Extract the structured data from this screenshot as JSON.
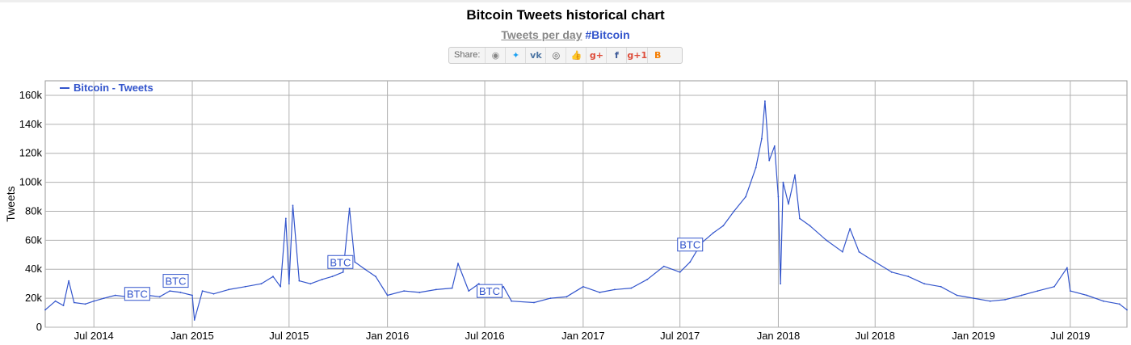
{
  "title": "Bitcoin Tweets historical chart",
  "subtitle_prefix": "Tweets per day",
  "subtitle_tag": "#Bitcoin",
  "share": {
    "label": "Share:",
    "buttons": [
      {
        "name": "reddit",
        "glyph": "◉",
        "color": "#888888"
      },
      {
        "name": "twitter",
        "glyph": "✦",
        "color": "#1da1f2"
      },
      {
        "name": "vk",
        "glyph": "vk",
        "color": "#4c75a3"
      },
      {
        "name": "weibo",
        "glyph": "◎",
        "color": "#555555"
      },
      {
        "name": "like",
        "glyph": "👍",
        "color": "#3b5998"
      },
      {
        "name": "google-plus",
        "glyph": "g+",
        "color": "#dd4b39"
      },
      {
        "name": "facebook",
        "glyph": "f",
        "color": "#3b5998"
      },
      {
        "name": "google-plus-one",
        "glyph": "g+1",
        "color": "#dd4b39"
      },
      {
        "name": "blogger",
        "glyph": "B",
        "color": "#f57d00"
      }
    ]
  },
  "chart_data": {
    "type": "line",
    "ylabel": "Tweets",
    "xlabel": "",
    "ylim": [
      0,
      170000
    ],
    "yticks": [
      0,
      20000,
      40000,
      60000,
      80000,
      100000,
      120000,
      140000,
      160000
    ],
    "ytick_labels": [
      "0",
      "20k",
      "40k",
      "60k",
      "80k",
      "100k",
      "120k",
      "140k",
      "160k"
    ],
    "xlim": [
      "2014-04-01",
      "2019-10-15"
    ],
    "xticks": [
      "2014-07-01",
      "2015-01-01",
      "2015-07-01",
      "2016-01-01",
      "2016-07-01",
      "2017-01-01",
      "2017-07-01",
      "2018-01-01",
      "2018-07-01",
      "2019-01-01",
      "2019-07-01"
    ],
    "xtick_labels": [
      "Jul 2014",
      "Jan 2015",
      "Jul 2015",
      "Jan 2016",
      "Jul 2016",
      "Jan 2017",
      "Jul 2017",
      "Jan 2018",
      "Jul 2018",
      "Jan 2019",
      "Jul 2019"
    ],
    "grid": true,
    "legend_position": "top-left",
    "line_color": "#3355cc",
    "series": [
      {
        "name": "Bitcoin - Tweets",
        "points": [
          [
            "2014-04-01",
            12000
          ],
          [
            "2014-04-20",
            18000
          ],
          [
            "2014-05-05",
            15000
          ],
          [
            "2014-05-15",
            32000
          ],
          [
            "2014-05-25",
            17000
          ],
          [
            "2014-06-15",
            16000
          ],
          [
            "2014-07-01",
            18000
          ],
          [
            "2014-07-20",
            20000
          ],
          [
            "2014-08-10",
            22000
          ],
          [
            "2014-09-01",
            21000
          ],
          [
            "2014-09-20",
            24000
          ],
          [
            "2014-10-10",
            22000
          ],
          [
            "2014-11-01",
            21000
          ],
          [
            "2014-11-20",
            25000
          ],
          [
            "2014-12-10",
            24000
          ],
          [
            "2015-01-01",
            22000
          ],
          [
            "2015-01-05",
            5000
          ],
          [
            "2015-01-20",
            25000
          ],
          [
            "2015-02-10",
            23000
          ],
          [
            "2015-03-10",
            26000
          ],
          [
            "2015-04-10",
            28000
          ],
          [
            "2015-05-10",
            30000
          ],
          [
            "2015-06-01",
            35000
          ],
          [
            "2015-06-15",
            28000
          ],
          [
            "2015-06-25",
            75000
          ],
          [
            "2015-07-01",
            30000
          ],
          [
            "2015-07-08",
            84000
          ],
          [
            "2015-07-20",
            32000
          ],
          [
            "2015-08-10",
            30000
          ],
          [
            "2015-09-01",
            33000
          ],
          [
            "2015-09-20",
            35000
          ],
          [
            "2015-10-10",
            38000
          ],
          [
            "2015-10-22",
            82000
          ],
          [
            "2015-11-01",
            45000
          ],
          [
            "2015-11-20",
            40000
          ],
          [
            "2015-12-10",
            35000
          ],
          [
            "2016-01-01",
            22000
          ],
          [
            "2016-02-01",
            25000
          ],
          [
            "2016-03-01",
            24000
          ],
          [
            "2016-04-01",
            26000
          ],
          [
            "2016-05-01",
            27000
          ],
          [
            "2016-05-12",
            44000
          ],
          [
            "2016-06-01",
            25000
          ],
          [
            "2016-06-20",
            30000
          ],
          [
            "2016-07-01",
            24000
          ],
          [
            "2016-07-20",
            22000
          ],
          [
            "2016-08-05",
            28000
          ],
          [
            "2016-08-20",
            18000
          ],
          [
            "2016-10-01",
            17000
          ],
          [
            "2016-11-01",
            20000
          ],
          [
            "2016-12-01",
            21000
          ],
          [
            "2017-01-01",
            28000
          ],
          [
            "2017-02-01",
            24000
          ],
          [
            "2017-03-01",
            26000
          ],
          [
            "2017-04-01",
            27000
          ],
          [
            "2017-05-01",
            33000
          ],
          [
            "2017-06-01",
            42000
          ],
          [
            "2017-07-01",
            38000
          ],
          [
            "2017-07-20",
            45000
          ],
          [
            "2017-08-10",
            58000
          ],
          [
            "2017-09-01",
            65000
          ],
          [
            "2017-09-20",
            70000
          ],
          [
            "2017-10-10",
            80000
          ],
          [
            "2017-11-01",
            90000
          ],
          [
            "2017-11-20",
            110000
          ],
          [
            "2017-12-01",
            130000
          ],
          [
            "2017-12-07",
            156000
          ],
          [
            "2017-12-15",
            115000
          ],
          [
            "2017-12-25",
            125000
          ],
          [
            "2018-01-01",
            90000
          ],
          [
            "2018-01-05",
            30000
          ],
          [
            "2018-01-10",
            100000
          ],
          [
            "2018-01-20",
            85000
          ],
          [
            "2018-02-01",
            105000
          ],
          [
            "2018-02-10",
            75000
          ],
          [
            "2018-03-01",
            70000
          ],
          [
            "2018-04-01",
            60000
          ],
          [
            "2018-05-01",
            52000
          ],
          [
            "2018-05-15",
            68000
          ],
          [
            "2018-06-01",
            52000
          ],
          [
            "2018-07-01",
            45000
          ],
          [
            "2018-08-01",
            38000
          ],
          [
            "2018-09-01",
            35000
          ],
          [
            "2018-10-01",
            30000
          ],
          [
            "2018-11-01",
            28000
          ],
          [
            "2018-12-01",
            22000
          ],
          [
            "2019-01-01",
            20000
          ],
          [
            "2019-02-01",
            18000
          ],
          [
            "2019-03-01",
            19000
          ],
          [
            "2019-04-01",
            22000
          ],
          [
            "2019-05-01",
            25000
          ],
          [
            "2019-06-01",
            28000
          ],
          [
            "2019-06-25",
            41000
          ],
          [
            "2019-07-01",
            25000
          ],
          [
            "2019-08-01",
            22000
          ],
          [
            "2019-09-01",
            18000
          ],
          [
            "2019-10-01",
            16000
          ],
          [
            "2019-10-15",
            12000
          ]
        ]
      }
    ],
    "annotations": [
      {
        "label": "BTC",
        "x": "2014-09-20",
        "y": 23000
      },
      {
        "label": "BTC",
        "x": "2014-12-01",
        "y": 32000
      },
      {
        "label": "BTC",
        "x": "2015-10-05",
        "y": 45000
      },
      {
        "label": "BTC",
        "x": "2016-07-10",
        "y": 25000
      },
      {
        "label": "BTC",
        "x": "2017-07-20",
        "y": 57000
      }
    ]
  }
}
